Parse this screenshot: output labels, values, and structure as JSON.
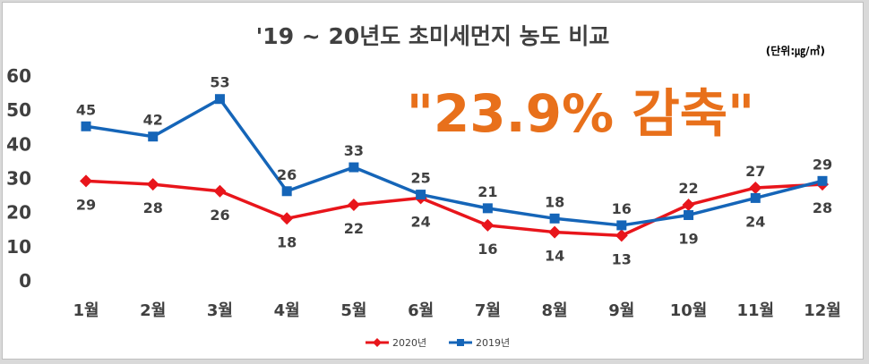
{
  "chart_data": {
    "type": "line",
    "title": "'19 ~ 20년도 초미세먼지 농도 비교",
    "unit_note": "(단위:㎍/㎥)",
    "annotation": "\"23.9% 감축\"",
    "categories": [
      "1월",
      "2월",
      "3월",
      "4월",
      "5월",
      "6월",
      "7월",
      "8월",
      "9월",
      "10월",
      "11월",
      "12월"
    ],
    "ylim": [
      0,
      60
    ],
    "yticks": [
      0,
      10,
      20,
      30,
      40,
      50,
      60
    ],
    "grid": false,
    "legend_position": "bottom",
    "series": [
      {
        "name": "2020년",
        "color": "#e8151b",
        "marker": "diamond",
        "values": [
          29,
          28,
          26,
          18,
          22,
          24,
          16,
          14,
          13,
          22,
          27,
          28
        ]
      },
      {
        "name": "2019년",
        "color": "#1565b8",
        "marker": "square",
        "values": [
          45,
          42,
          53,
          26,
          33,
          25,
          21,
          18,
          16,
          19,
          24,
          29
        ]
      }
    ],
    "data_labels": {
      "2020년": [
        "29",
        "28",
        "26",
        "18",
        "22",
        "24",
        "16",
        "14",
        "13",
        "22",
        "27",
        "28"
      ],
      "2019년": [
        "45",
        "42",
        "53",
        "26",
        "33",
        "25",
        "21",
        "18",
        "16",
        "19",
        "24",
        "29"
      ]
    },
    "colors": {
      "annotation": "#e8701b",
      "text": "#404040"
    }
  }
}
